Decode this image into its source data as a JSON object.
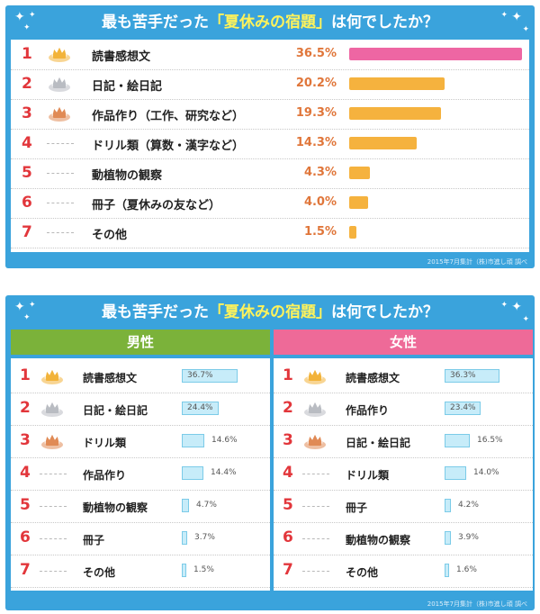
{
  "overall": {
    "title_pre": "最も苦手だった",
    "title_hl": "「夏休みの宿題」",
    "title_post": "は何でしたか？",
    "footnote": "2015年7月集計（株)市進し頑 調べ",
    "rows": [
      {
        "rank": "1",
        "label": "読書感想文",
        "pct": "36.5%",
        "medal": "gold"
      },
      {
        "rank": "2",
        "label": "日記・絵日記",
        "pct": "20.2%",
        "medal": "silver"
      },
      {
        "rank": "3",
        "label": "作品作り（工作、研究など）",
        "pct": "19.3%",
        "medal": "bronze"
      },
      {
        "rank": "4",
        "label": "ドリル類（算数・漢字など）",
        "pct": "14.3%",
        "medal": "none"
      },
      {
        "rank": "5",
        "label": "動植物の観察",
        "pct": "4.3%",
        "medal": "none"
      },
      {
        "rank": "6",
        "label": "冊子（夏休みの友など）",
        "pct": "4.0%",
        "medal": "none"
      },
      {
        "rank": "7",
        "label": "その他",
        "pct": "1.5%",
        "medal": "none"
      }
    ]
  },
  "by_gender": {
    "title_pre": "最も苦手だった",
    "title_hl": "「夏休みの宿題」",
    "title_post": "は何でしたか？",
    "footnote": "2015年7月集計（株)市進し頑 調べ",
    "male": {
      "header": "男性",
      "rows": [
        {
          "rank": "1",
          "label": "読書感想文",
          "pct": "36.7%",
          "medal": "gold"
        },
        {
          "rank": "2",
          "label": "日記・絵日記",
          "pct": "24.4%",
          "medal": "silver"
        },
        {
          "rank": "3",
          "label": "ドリル類",
          "pct": "14.6%",
          "medal": "bronze"
        },
        {
          "rank": "4",
          "label": "作品作り",
          "pct": "14.4%",
          "medal": "none"
        },
        {
          "rank": "5",
          "label": "動植物の観察",
          "pct": "4.7%",
          "medal": "none"
        },
        {
          "rank": "6",
          "label": "冊子",
          "pct": "3.7%",
          "medal": "none"
        },
        {
          "rank": "7",
          "label": "その他",
          "pct": "1.5%",
          "medal": "none"
        }
      ]
    },
    "female": {
      "header": "女性",
      "rows": [
        {
          "rank": "1",
          "label": "読書感想文",
          "pct": "36.3%",
          "medal": "gold"
        },
        {
          "rank": "2",
          "label": "作品作り",
          "pct": "23.4%",
          "medal": "silver"
        },
        {
          "rank": "3",
          "label": "日記・絵日記",
          "pct": "16.5%",
          "medal": "bronze"
        },
        {
          "rank": "4",
          "label": "ドリル類",
          "pct": "14.0%",
          "medal": "none"
        },
        {
          "rank": "5",
          "label": "冊子",
          "pct": "4.2%",
          "medal": "none"
        },
        {
          "rank": "6",
          "label": "動植物の観察",
          "pct": "3.9%",
          "medal": "none"
        },
        {
          "rank": "7",
          "label": "その他",
          "pct": "1.6%",
          "medal": "none"
        }
      ]
    }
  },
  "colors": {
    "panel": "#3aa3dc",
    "rank_red": "#e2363b",
    "bar_top": "#ee66a3",
    "bar_other": "#f5b23e",
    "male_header": "#7bb23a",
    "female_header": "#ee6a98",
    "small_bar": "#c7ecf9"
  },
  "chart_data": [
    {
      "type": "bar",
      "title": "最も苦手だった「夏休みの宿題」は何でしたか？",
      "categories": [
        "読書感想文",
        "日記・絵日記",
        "作品作り（工作、研究など）",
        "ドリル類（算数・漢字など）",
        "動植物の観察",
        "冊子（夏休みの友など）",
        "その他"
      ],
      "values": [
        36.5,
        20.2,
        19.3,
        14.3,
        4.3,
        4.0,
        1.5
      ],
      "orientation": "horizontal",
      "unit": "%"
    },
    {
      "type": "bar",
      "title": "男性",
      "categories": [
        "読書感想文",
        "日記・絵日記",
        "ドリル類",
        "作品作り",
        "動植物の観察",
        "冊子",
        "その他"
      ],
      "values": [
        36.7,
        24.4,
        14.6,
        14.4,
        4.7,
        3.7,
        1.5
      ],
      "orientation": "horizontal",
      "unit": "%"
    },
    {
      "type": "bar",
      "title": "女性",
      "categories": [
        "読書感想文",
        "作品作り",
        "日記・絵日記",
        "ドリル類",
        "冊子",
        "動植物の観察",
        "その他"
      ],
      "values": [
        36.3,
        23.4,
        16.5,
        14.0,
        4.2,
        3.9,
        1.6
      ],
      "orientation": "horizontal",
      "unit": "%"
    }
  ]
}
